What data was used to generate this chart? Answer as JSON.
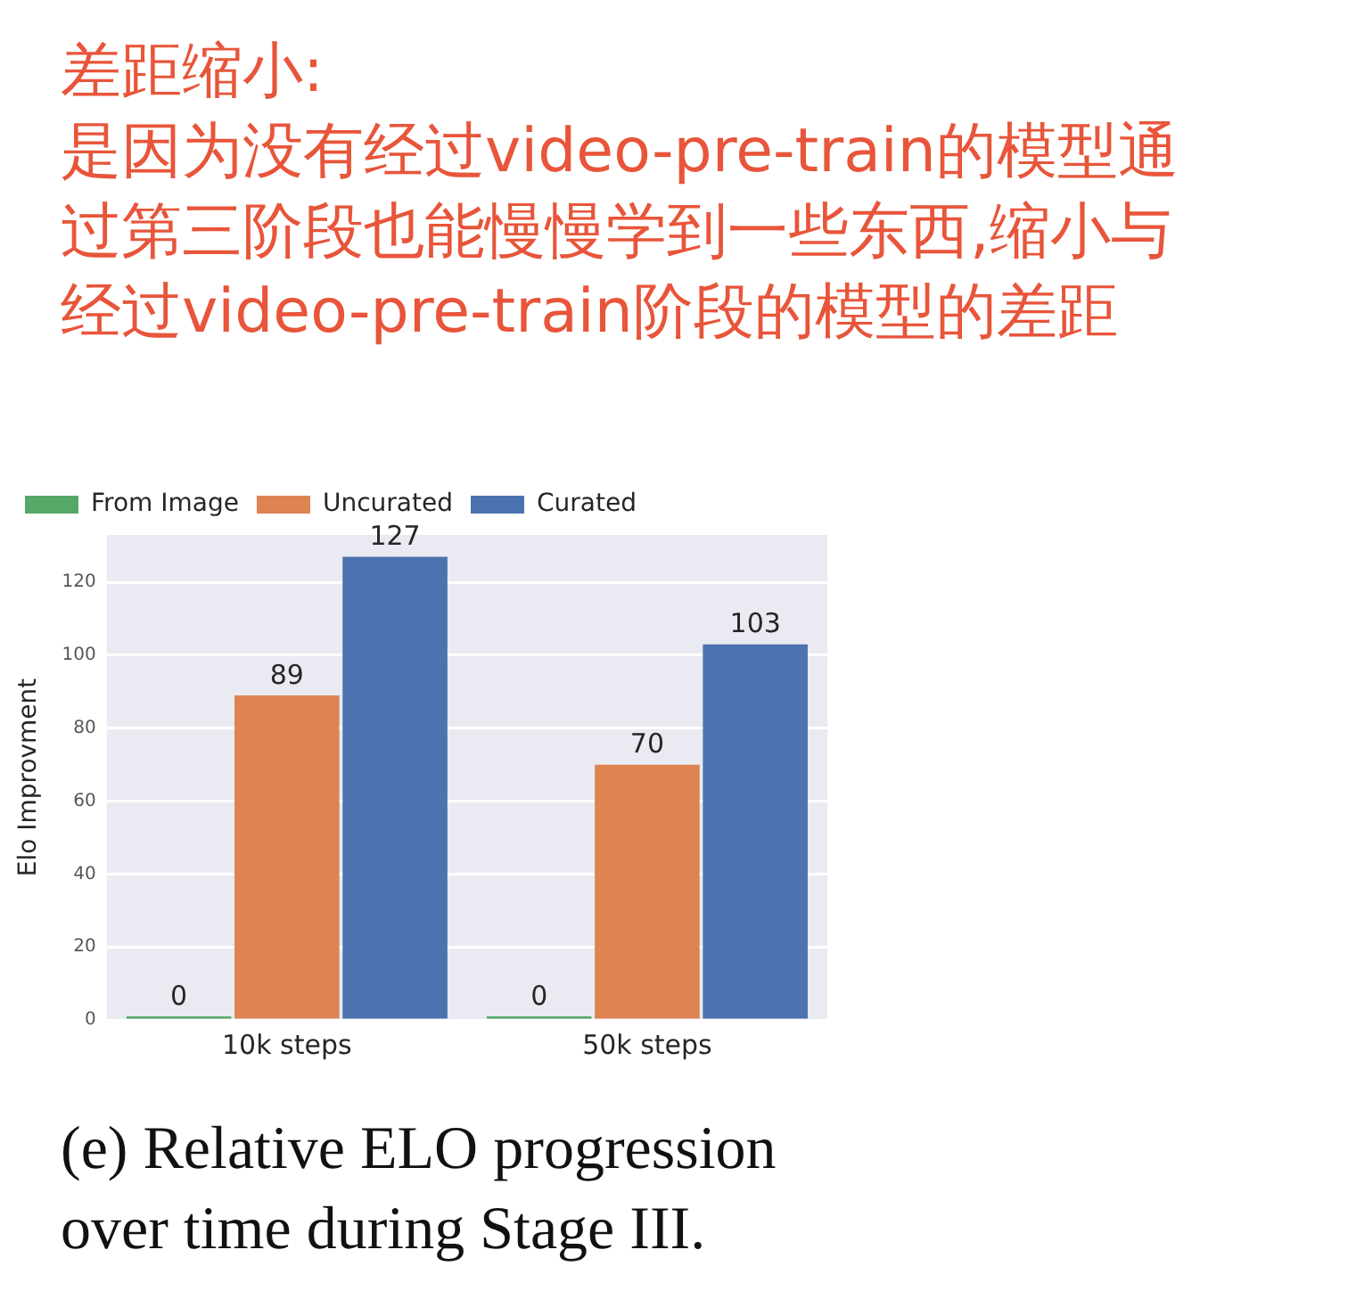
{
  "chart_data": {
    "type": "bar",
    "categories": [
      "10k steps",
      "50k steps"
    ],
    "series": [
      {
        "name": "From Image",
        "color": "#55a868",
        "values": [
          0,
          0
        ]
      },
      {
        "name": "Uncurated",
        "color": "#dd8452",
        "values": [
          89,
          70
        ]
      },
      {
        "name": "Curated",
        "color": "#4c72b0",
        "values": [
          127,
          103
        ]
      }
    ],
    "ylabel": "Elo Improvment",
    "ylim": [
      0,
      133
    ],
    "yticks": [
      0,
      20,
      40,
      60,
      80,
      100,
      120
    ],
    "grid": "y",
    "legend": "top left",
    "data_labels": true,
    "annotations": [
      "差距缩小:\n是因为没有经过video-pre-train的模型通过第三阶段也能慢慢学到一些东西,缩小与经过video-pre-train阶段的模型的差距",
      "(e) Relative ELO progression\nover time during Stage III."
    ]
  }
}
